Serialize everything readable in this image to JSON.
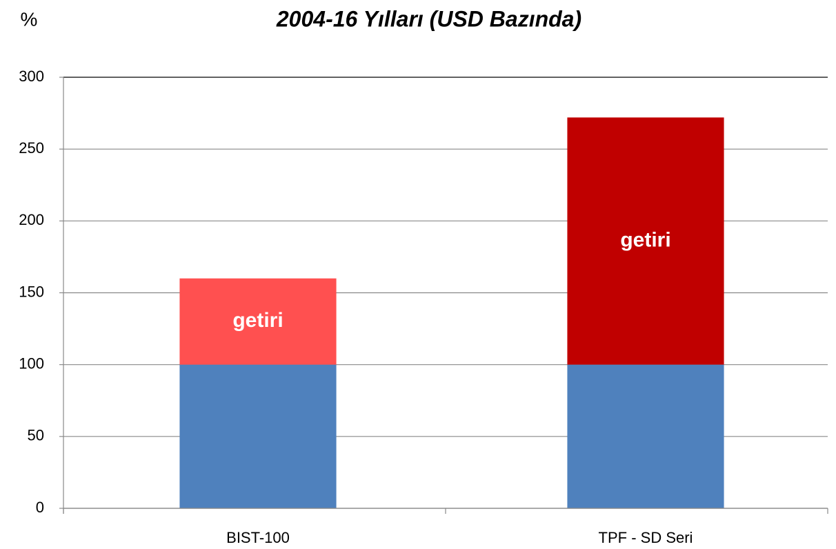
{
  "chart_data": {
    "type": "stacked_bar",
    "title": "2004-16 Yılları (USD Bazında)",
    "y_label": "%",
    "categories": [
      "BIST-100",
      "TPF - SD Seri"
    ],
    "series": [
      {
        "color": "#4f81bd",
        "values": [
          100,
          100
        ]
      },
      {
        "name": "getiri",
        "colors": [
          "#ff5050",
          "#c00000"
        ],
        "values": [
          60,
          172
        ]
      }
    ],
    "ylim": [
      0,
      300
    ],
    "yticks": [
      0,
      50,
      100,
      150,
      200,
      250,
      300
    ],
    "grid": true
  }
}
